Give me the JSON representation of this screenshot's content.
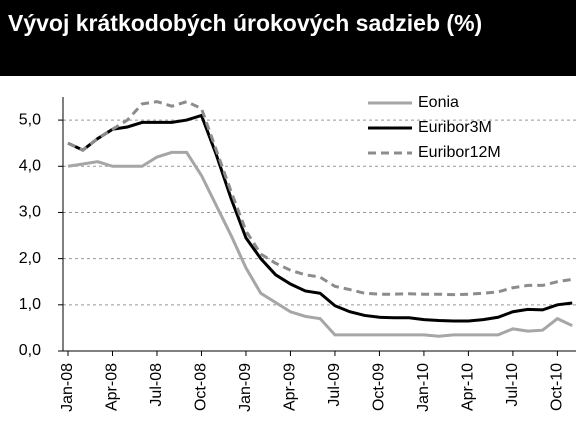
{
  "chart_data": {
    "type": "line",
    "title": "Vývoj krátkodobých úrokových sadzieb (%)",
    "categories": [
      "Jan-08",
      null,
      null,
      "Apr-08",
      null,
      null,
      "Jul-08",
      null,
      null,
      "Oct-08",
      null,
      null,
      "Jan-09",
      null,
      null,
      "Apr-09",
      null,
      null,
      "Jul-09",
      null,
      null,
      "Oct-09",
      null,
      null,
      "Jan-10",
      null,
      null,
      "Apr-10",
      null,
      null,
      "Jul-10",
      null,
      null,
      "Oct-10",
      null
    ],
    "series": [
      {
        "name": "Eonia",
        "color": "#a6a6a6",
        "dash": "solid",
        "values": [
          4.0,
          4.05,
          4.1,
          4.0,
          4.0,
          4.0,
          4.2,
          4.3,
          4.3,
          3.8,
          3.15,
          2.5,
          1.8,
          1.25,
          1.05,
          0.85,
          0.75,
          0.7,
          0.35,
          0.35,
          0.35,
          0.35,
          0.35,
          0.35,
          0.35,
          0.32,
          0.35,
          0.35,
          0.35,
          0.35,
          0.48,
          0.43,
          0.45,
          0.7,
          0.55
        ]
      },
      {
        "name": "Euribor3M",
        "color": "#000000",
        "dash": "solid",
        "values": [
          4.5,
          4.35,
          4.6,
          4.8,
          4.85,
          4.95,
          4.95,
          4.95,
          5.0,
          5.1,
          4.25,
          3.3,
          2.45,
          2.0,
          1.65,
          1.45,
          1.3,
          1.25,
          0.98,
          0.85,
          0.77,
          0.73,
          0.72,
          0.72,
          0.68,
          0.66,
          0.65,
          0.65,
          0.68,
          0.73,
          0.85,
          0.9,
          0.89,
          1.0,
          1.04
        ]
      },
      {
        "name": "Euribor12M",
        "color": "#8c8c8c",
        "dash": "dashed",
        "values": [
          4.5,
          4.35,
          4.6,
          4.8,
          5.0,
          5.35,
          5.4,
          5.3,
          5.4,
          5.25,
          4.35,
          3.45,
          2.6,
          2.1,
          1.9,
          1.75,
          1.65,
          1.6,
          1.4,
          1.33,
          1.25,
          1.23,
          1.23,
          1.24,
          1.23,
          1.23,
          1.22,
          1.23,
          1.25,
          1.28,
          1.37,
          1.42,
          1.42,
          1.5,
          1.55
        ]
      }
    ],
    "ylim": [
      0,
      5.5
    ],
    "yticks": [
      {
        "value": 0,
        "label": "0,0"
      },
      {
        "value": 1,
        "label": "1,0"
      },
      {
        "value": 2,
        "label": "2,0"
      },
      {
        "value": 3,
        "label": "3,0"
      },
      {
        "value": 4,
        "label": "4,0"
      },
      {
        "value": 5,
        "label": "5,0"
      }
    ],
    "grid": true,
    "legend": "upper right"
  }
}
